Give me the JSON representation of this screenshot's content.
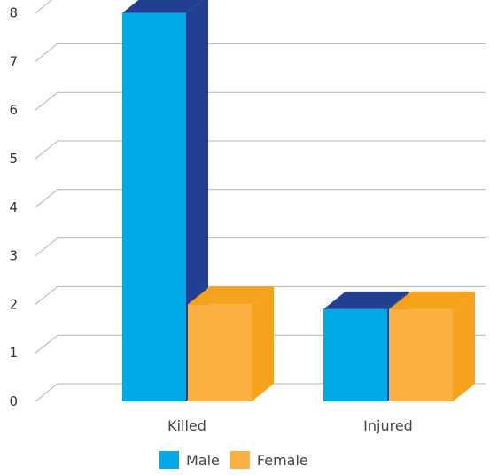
{
  "chart_data": {
    "type": "bar",
    "style": "3d-clustered",
    "categories": [
      "Killed",
      "Injured"
    ],
    "series": [
      {
        "name": "Male",
        "values": [
          8,
          1.9
        ],
        "color": "#00a9e8",
        "top_color": "#233f91",
        "side_color": "#233f91"
      },
      {
        "name": "Female",
        "values": [
          2,
          1.9
        ],
        "color": "#fbb040",
        "top_color": "#f7a21c",
        "side_color": "#f7a21c"
      }
    ],
    "ylim": [
      0,
      8
    ],
    "yticks": [
      "0",
      "1",
      "2",
      "3",
      "4",
      "5",
      "6",
      "7",
      "8"
    ],
    "grid": true,
    "legend_position": "bottom"
  }
}
